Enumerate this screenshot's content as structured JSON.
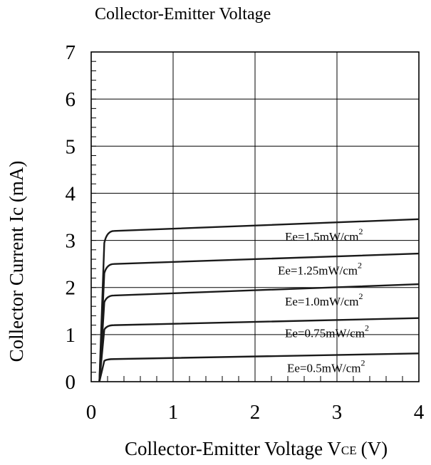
{
  "chart_data": {
    "type": "line",
    "title": "Collector-Emitter Voltage",
    "xlabel": "Collector-Emitter Voltage V",
    "xlabel_subscript": "CE",
    "xlabel_unit": "(V)",
    "ylabel": "Collector Current Ic (mA)",
    "xlim": [
      0,
      4
    ],
    "ylim": [
      0,
      7
    ],
    "x_ticks": [
      "0",
      "1",
      "2",
      "3",
      "4"
    ],
    "y_ticks": [
      "0",
      "1",
      "2",
      "3",
      "4",
      "5",
      "6",
      "7"
    ],
    "grid": true,
    "series": [
      {
        "label": "Ee=1.5mW/cm",
        "label_sup": "2",
        "plateau_start": 3.2,
        "plateau_end": 3.45
      },
      {
        "label": "Ee=1.25mW/cm",
        "label_sup": "2",
        "plateau_start": 2.5,
        "plateau_end": 2.72
      },
      {
        "label": "Ee=1.0mW/cm",
        "label_sup": "2",
        "plateau_start": 1.83,
        "plateau_end": 2.07
      },
      {
        "label": "Ee=0.75mW/cm",
        "label_sup": "2",
        "plateau_start": 1.2,
        "plateau_end": 1.35
      },
      {
        "label": "Ee=0.5mW/cm",
        "label_sup": "2",
        "plateau_start": 0.48,
        "plateau_end": 0.6
      }
    ]
  }
}
